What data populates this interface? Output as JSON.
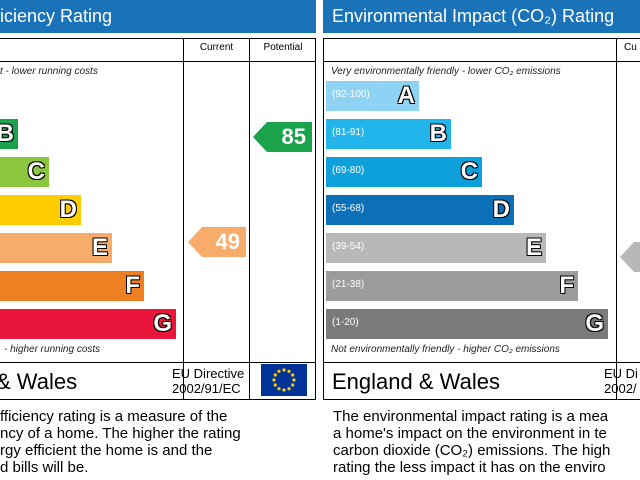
{
  "energy": {
    "title": "iciency Rating",
    "col_current": "Current",
    "col_potential": "Potential",
    "top_note": "t - lower running costs",
    "bottom_note": "- higher running costs",
    "bands": [
      {
        "letter": "B",
        "range": "",
        "color": "#1aa34a"
      },
      {
        "letter": "C",
        "range": "",
        "color": "#8cc63e"
      },
      {
        "letter": "D",
        "range": "",
        "color": "#ffcc00"
      },
      {
        "letter": "E",
        "range": "",
        "color": "#f7ac6b"
      },
      {
        "letter": "F",
        "range": "",
        "color": "#ef8023"
      },
      {
        "letter": "G",
        "range": "",
        "color": "#e9153b"
      }
    ],
    "current": {
      "value": "49",
      "color": "#f7ac6b"
    },
    "potential": {
      "value": "85",
      "color": "#1aa34a"
    },
    "region": "& Wales",
    "directive_line1": "EU Directive",
    "directive_line2": "2002/91/EC",
    "desc_lines": [
      "fficiency rating is a measure of the",
      "ncy of a home. The higher the rating",
      "rgy efficient the home is and the",
      "d bills will be."
    ]
  },
  "environment": {
    "title": "Environmental Impact (CO₂) Rating",
    "col_current": "Cu",
    "top_note": "Very environmentally friendly - lower CO₂ emissions",
    "bottom_note": "Not environmentally friendly - higher CO₂ emissions",
    "bands": [
      {
        "letter": "A",
        "range": "(92-100)",
        "color": "#8fd3f4"
      },
      {
        "letter": "B",
        "range": "(81-91)",
        "color": "#22b5ec"
      },
      {
        "letter": "C",
        "range": "(69-80)",
        "color": "#0ea0db"
      },
      {
        "letter": "D",
        "range": "(55-68)",
        "color": "#0b70b7"
      },
      {
        "letter": "E",
        "range": "(39-54)",
        "color": "#b8b8b8"
      },
      {
        "letter": "F",
        "range": "(21-38)",
        "color": "#9b9b9b"
      },
      {
        "letter": "G",
        "range": "(1-20)",
        "color": "#7a7a7a"
      }
    ],
    "current_color": "#b8b8b8",
    "region": "England & Wales",
    "directive_line1": "EU Di",
    "directive_line2": "2002/",
    "desc_lines": [
      "The environmental impact rating is a mea",
      "a home's impact on the environment in te",
      "carbon dioxide (CO₂) emissions. The high",
      "rating the less impact it has on the enviro"
    ]
  }
}
